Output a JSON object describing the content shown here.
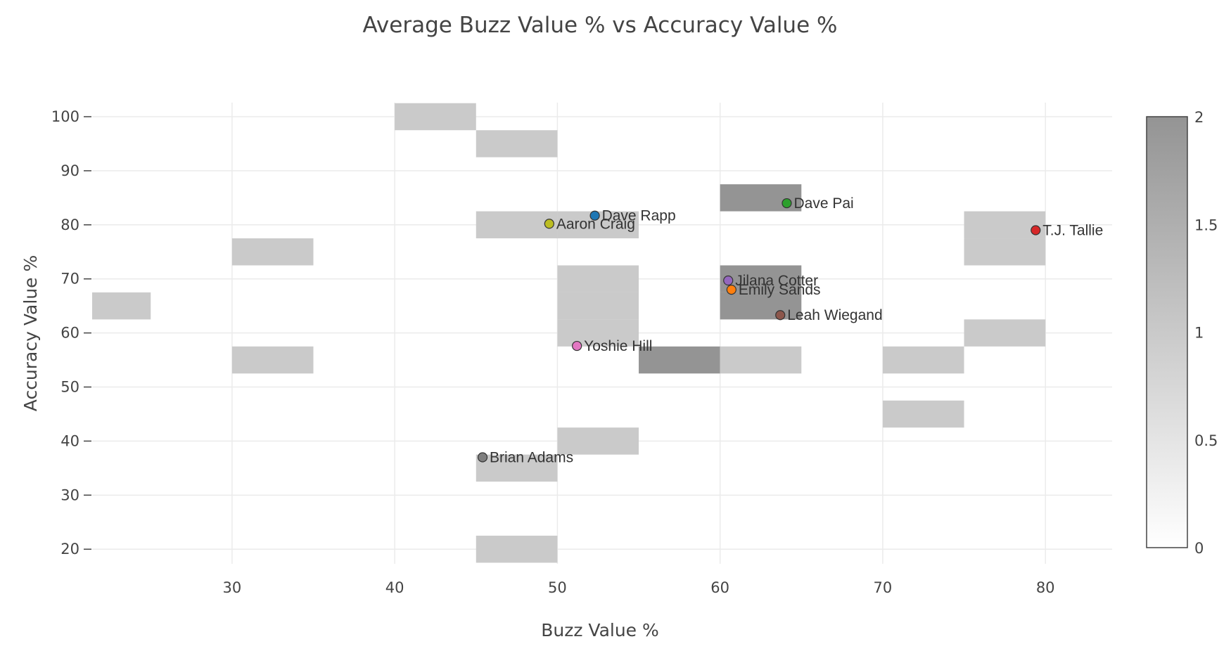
{
  "chart_data": {
    "type": "scatter",
    "title": "Average Buzz Value % vs Accuracy Value %",
    "xlabel": "Buzz Value %",
    "ylabel": "Accuracy Value %",
    "xlim": [
      21.4,
      84.1
    ],
    "ylim": [
      17.3,
      102.6
    ],
    "xticks": [
      30,
      40,
      50,
      60,
      70,
      80
    ],
    "yticks": [
      20,
      30,
      40,
      50,
      60,
      70,
      80,
      90,
      100
    ],
    "grid": true,
    "points": [
      {
        "name": "Dave Rapp",
        "x": 52.3,
        "y": 81.7,
        "color": "#1f77b4"
      },
      {
        "name": "Aaron Craig",
        "x": 49.5,
        "y": 80.2,
        "color": "#bcbd22"
      },
      {
        "name": "Dave Pai",
        "x": 64.1,
        "y": 84.0,
        "color": "#2ca02c"
      },
      {
        "name": "T.J. Tallie",
        "x": 79.4,
        "y": 79.0,
        "color": "#d62728"
      },
      {
        "name": "Jilana Cotter",
        "x": 60.5,
        "y": 69.7,
        "color": "#9467bd"
      },
      {
        "name": "Emily Sands",
        "x": 60.7,
        "y": 68.0,
        "color": "#ff7f0e"
      },
      {
        "name": "Leah Wiegand",
        "x": 63.7,
        "y": 63.3,
        "color": "#8c564b"
      },
      {
        "name": "Yoshie Hill",
        "x": 51.2,
        "y": 57.6,
        "color": "#e377c2"
      },
      {
        "name": "Brian Adams",
        "x": 45.4,
        "y": 37.0,
        "color": "#7f7f7f"
      }
    ],
    "density_heatmap": {
      "colorscale": [
        "#ffffff",
        "#949494"
      ],
      "zlim": [
        0,
        2
      ],
      "colorbar_ticks": [
        "0",
        "0.5",
        "1",
        "1.5",
        "2"
      ],
      "cells": [
        {
          "x0": 40,
          "x1": 45,
          "y0": 97.5,
          "y1": 102.5,
          "count": 1
        },
        {
          "x0": 45,
          "x1": 50,
          "y0": 92.5,
          "y1": 97.5,
          "count": 1
        },
        {
          "x0": 60,
          "x1": 65,
          "y0": 82.5,
          "y1": 87.5,
          "count": 2
        },
        {
          "x0": 45,
          "x1": 50,
          "y0": 77.5,
          "y1": 82.5,
          "count": 1
        },
        {
          "x0": 50,
          "x1": 55,
          "y0": 77.5,
          "y1": 82.5,
          "count": 1
        },
        {
          "x0": 75,
          "x1": 80,
          "y0": 77.5,
          "y1": 82.5,
          "count": 1
        },
        {
          "x0": 30,
          "x1": 35,
          "y0": 72.5,
          "y1": 77.5,
          "count": 1
        },
        {
          "x0": 75,
          "x1": 80,
          "y0": 72.5,
          "y1": 77.5,
          "count": 1
        },
        {
          "x0": 50,
          "x1": 55,
          "y0": 67.5,
          "y1": 72.5,
          "count": 1
        },
        {
          "x0": 60,
          "x1": 65,
          "y0": 67.5,
          "y1": 72.5,
          "count": 2
        },
        {
          "x0": 20,
          "x1": 25,
          "y0": 62.5,
          "y1": 67.5,
          "count": 1
        },
        {
          "x0": 50,
          "x1": 55,
          "y0": 62.5,
          "y1": 67.5,
          "count": 1
        },
        {
          "x0": 60,
          "x1": 65,
          "y0": 62.5,
          "y1": 67.5,
          "count": 2
        },
        {
          "x0": 50,
          "x1": 55,
          "y0": 57.5,
          "y1": 62.5,
          "count": 1
        },
        {
          "x0": 75,
          "x1": 80,
          "y0": 57.5,
          "y1": 62.5,
          "count": 1
        },
        {
          "x0": 30,
          "x1": 35,
          "y0": 52.5,
          "y1": 57.5,
          "count": 1
        },
        {
          "x0": 55,
          "x1": 60,
          "y0": 52.5,
          "y1": 57.5,
          "count": 2
        },
        {
          "x0": 60,
          "x1": 65,
          "y0": 52.5,
          "y1": 57.5,
          "count": 1
        },
        {
          "x0": 70,
          "x1": 75,
          "y0": 52.5,
          "y1": 57.5,
          "count": 1
        },
        {
          "x0": 70,
          "x1": 75,
          "y0": 42.5,
          "y1": 47.5,
          "count": 1
        },
        {
          "x0": 50,
          "x1": 55,
          "y0": 37.5,
          "y1": 42.5,
          "count": 1
        },
        {
          "x0": 45,
          "x1": 50,
          "y0": 32.5,
          "y1": 37.5,
          "count": 1
        },
        {
          "x0": 45,
          "x1": 50,
          "y0": 17.5,
          "y1": 22.5,
          "count": 1
        }
      ]
    }
  }
}
